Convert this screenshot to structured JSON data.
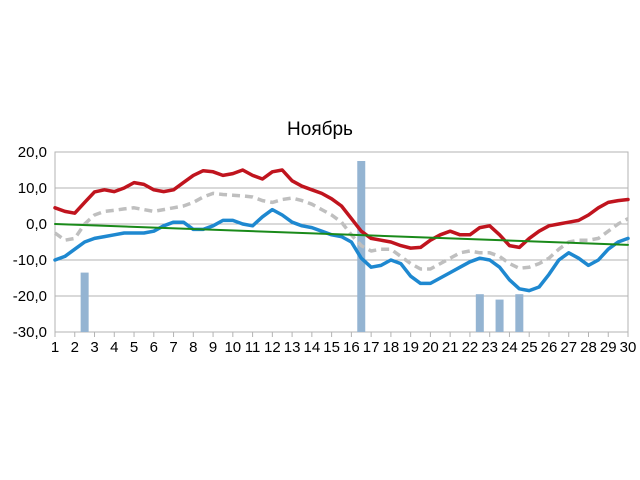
{
  "chart_data": {
    "type": "line",
    "title": "Ноябрь",
    "xlabel": "",
    "ylabel": "",
    "categories": [
      "1",
      "2",
      "3",
      "4",
      "5",
      "6",
      "7",
      "8",
      "9",
      "10",
      "11",
      "12",
      "13",
      "14",
      "15",
      "16",
      "17",
      "18",
      "19",
      "20",
      "21",
      "22",
      "23",
      "24",
      "25",
      "26",
      "27",
      "28",
      "29",
      "30"
    ],
    "y_tick_labels": [
      "20,0",
      "10,0",
      "0,0",
      "-10,0",
      "-20,0",
      "-30,0"
    ],
    "y_ticks": [
      20,
      10,
      0,
      -10,
      -20,
      -30
    ],
    "ylim": [
      -30,
      20
    ],
    "grid": "horizontal",
    "legend": "none",
    "series": [
      {
        "kind": "line",
        "style": "solid",
        "color": "#c0141e",
        "x": [
          1,
          1.5,
          2,
          2.5,
          3,
          3.5,
          4,
          4.5,
          5,
          5.5,
          6,
          6.5,
          7,
          7.5,
          8,
          8.5,
          9,
          9.5,
          10,
          10.5,
          11,
          11.5,
          12,
          12.5,
          13,
          13.5,
          14,
          14.5,
          15,
          15.5,
          16,
          16.5,
          17,
          17.5,
          18,
          18.5,
          19,
          19.5,
          20,
          20.5,
          21,
          21.5,
          22,
          22.5,
          23,
          23.5,
          24,
          24.5,
          25,
          25.5,
          26,
          26.5,
          27,
          27.5,
          28,
          28.5,
          29,
          29.5,
          30
        ],
        "values": [
          4.5,
          3.5,
          3,
          6,
          8.9,
          9.5,
          9,
          10,
          11.5,
          11,
          9.5,
          9,
          9.5,
          11.5,
          13.5,
          14.8,
          14.5,
          13.5,
          14,
          15,
          13.5,
          12.5,
          14.5,
          15,
          12,
          10.5,
          9.5,
          8.5,
          7,
          5,
          1.5,
          -2,
          -4,
          -4.5,
          -5,
          -6,
          -6.7,
          -6.5,
          -4.5,
          -3,
          -2,
          -3,
          -3,
          -1,
          -0.5,
          -3,
          -6,
          -6.5,
          -4,
          -2,
          -0.5,
          0,
          0.5,
          1,
          2.5,
          4.5,
          6,
          6.5,
          6.8
        ]
      },
      {
        "kind": "line",
        "style": "dashed",
        "color": "#bfbfbf",
        "x": [
          1,
          1.5,
          2,
          2.5,
          3,
          3.5,
          4,
          4.5,
          5,
          5.5,
          6,
          6.5,
          7,
          7.5,
          8,
          8.5,
          9,
          9.5,
          10,
          10.5,
          11,
          11.5,
          12,
          12.5,
          13,
          13.5,
          14,
          14.5,
          15,
          15.5,
          16,
          16.5,
          17,
          17.5,
          18,
          18.5,
          19,
          19.5,
          20,
          20.5,
          21,
          21.5,
          22,
          22.5,
          23,
          23.5,
          24,
          24.5,
          25,
          25.5,
          26,
          26.5,
          27,
          27.5,
          28,
          28.5,
          29,
          29.5,
          30
        ],
        "values": [
          -2.5,
          -4.5,
          -4,
          0,
          2.5,
          3.5,
          3.8,
          4.2,
          4.5,
          4,
          3.5,
          4,
          4.5,
          5,
          6,
          7.5,
          8.5,
          8.2,
          8,
          7.8,
          7.5,
          6.5,
          6,
          6.8,
          7.2,
          6.5,
          5.5,
          4,
          2.5,
          0.5,
          -3,
          -6,
          -7.5,
          -7,
          -7,
          -9,
          -11,
          -12.5,
          -12.5,
          -11,
          -9.5,
          -8,
          -7.5,
          -8,
          -8,
          -9,
          -11,
          -12.3,
          -12,
          -11,
          -9.5,
          -7,
          -5,
          -4.5,
          -4.5,
          -4,
          -2,
          0,
          1.5
        ]
      },
      {
        "kind": "line",
        "style": "solid",
        "color": "#1e88d0",
        "x": [
          1,
          1.5,
          2,
          2.5,
          3,
          3.5,
          4,
          4.5,
          5,
          5.5,
          6,
          6.5,
          7,
          7.5,
          8,
          8.5,
          9,
          9.5,
          10,
          10.5,
          11,
          11.5,
          12,
          12.5,
          13,
          13.5,
          14,
          14.5,
          15,
          15.5,
          16,
          16.5,
          17,
          17.5,
          18,
          18.5,
          19,
          19.5,
          20,
          20.5,
          21,
          21.5,
          22,
          22.5,
          23,
          23.5,
          24,
          24.5,
          25,
          25.5,
          26,
          26.5,
          27,
          27.5,
          28,
          28.5,
          29,
          29.5,
          30
        ],
        "values": [
          -10,
          -9,
          -7,
          -5,
          -4,
          -3.5,
          -3,
          -2.5,
          -2.5,
          -2.5,
          -2,
          -0.5,
          0.5,
          0.5,
          -1.5,
          -1.5,
          -0.5,
          1,
          1,
          0,
          -0.5,
          2,
          4,
          2.5,
          0.5,
          -0.5,
          -1,
          -2,
          -3,
          -3.5,
          -5,
          -9.5,
          -12,
          -11.5,
          -10,
          -11,
          -14.5,
          -16.5,
          -16.5,
          -15,
          -13.5,
          -12,
          -10.5,
          -9.5,
          -10,
          -12,
          -15.5,
          -18,
          -18.5,
          -17.5,
          -14,
          -10,
          -8,
          -9.5,
          -11.5,
          -10,
          -7,
          -5,
          -4
        ]
      },
      {
        "kind": "line",
        "style": "solid",
        "color": "#1a8a1a",
        "x": [
          1,
          30
        ],
        "values": [
          0,
          -5.8
        ]
      },
      {
        "kind": "bar",
        "color": "#94b4d2",
        "x": [
          2.5,
          16.5,
          22.5,
          23.5,
          24.5
        ],
        "values": [
          -13.5,
          17.5,
          -19.5,
          -21,
          -19.5
        ]
      }
    ]
  }
}
